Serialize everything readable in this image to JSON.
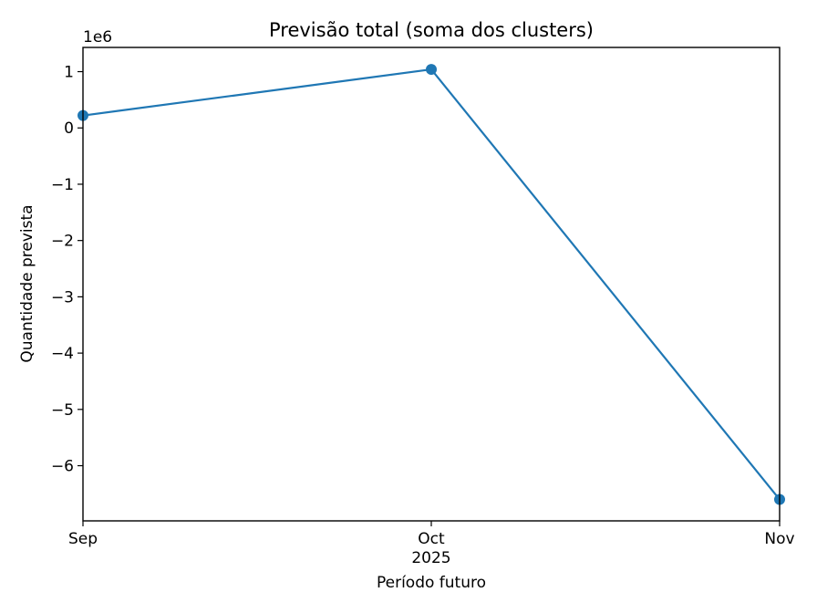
{
  "chart_data": {
    "type": "line",
    "title": "Previsão total (soma dos clusters)",
    "xlabel": "Período futuro",
    "ylabel": "Quantidade prevista",
    "y_offset_label": "1e6",
    "y_scale_factor": 1000000,
    "x": [
      "2025-09",
      "2025-10",
      "2025-11"
    ],
    "x_tick_labels": [
      "Sep",
      "Oct",
      "Nov"
    ],
    "x_year_label": "2025",
    "y_tick_values": [
      1,
      0,
      -1,
      -2,
      -3,
      -4,
      -5,
      -6
    ],
    "y_tick_labels": [
      "1",
      "0",
      "−1",
      "−2",
      "−3",
      "−4",
      "−5",
      "−6"
    ],
    "ylim": [
      -6.98,
      1.43
    ],
    "series": [
      {
        "values": [
          0.22,
          1.04,
          -6.6
        ],
        "color": "#1f77b4",
        "marker": "circle"
      }
    ],
    "grid": false,
    "legend": "none"
  }
}
